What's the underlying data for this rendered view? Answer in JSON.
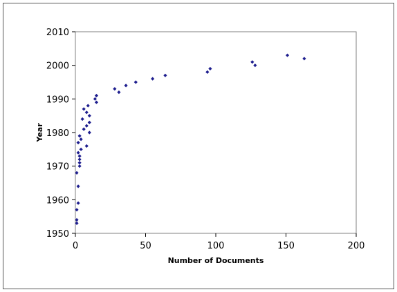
{
  "chart_data": {
    "type": "scatter",
    "title": "",
    "xlabel": "Number of Documents",
    "ylabel": "Year",
    "xlim": [
      0,
      200
    ],
    "ylim": [
      1950,
      2010
    ],
    "xticks": [
      0,
      50,
      100,
      150,
      200
    ],
    "yticks": [
      1950,
      1960,
      1970,
      1980,
      1990,
      2000,
      2010
    ],
    "grid": false,
    "legend": "none",
    "marker_color": "#1f1f8f",
    "series": [
      {
        "points": [
          [
            1,
            1953
          ],
          [
            1,
            1954
          ],
          [
            1,
            1957
          ],
          [
            2,
            1959
          ],
          [
            2,
            1964
          ],
          [
            1,
            1968
          ],
          [
            3,
            1970
          ],
          [
            3,
            1971
          ],
          [
            3,
            1972
          ],
          [
            3,
            1973
          ],
          [
            2,
            1974
          ],
          [
            4,
            1975
          ],
          [
            8,
            1976
          ],
          [
            2,
            1977
          ],
          [
            4,
            1978
          ],
          [
            3,
            1979
          ],
          [
            10,
            1980
          ],
          [
            6,
            1981
          ],
          [
            8,
            1982
          ],
          [
            10,
            1983
          ],
          [
            5,
            1984
          ],
          [
            10,
            1985
          ],
          [
            8,
            1986
          ],
          [
            6,
            1987
          ],
          [
            9,
            1988
          ],
          [
            15,
            1989
          ],
          [
            14,
            1990
          ],
          [
            15,
            1991
          ],
          [
            31,
            1992
          ],
          [
            28,
            1993
          ],
          [
            36,
            1994
          ],
          [
            43,
            1995
          ],
          [
            55,
            1996
          ],
          [
            64,
            1997
          ],
          [
            94,
            1998
          ],
          [
            96,
            1999
          ],
          [
            128,
            2000
          ],
          [
            126,
            2001
          ],
          [
            163,
            2002
          ],
          [
            151,
            2003
          ]
        ]
      }
    ]
  }
}
